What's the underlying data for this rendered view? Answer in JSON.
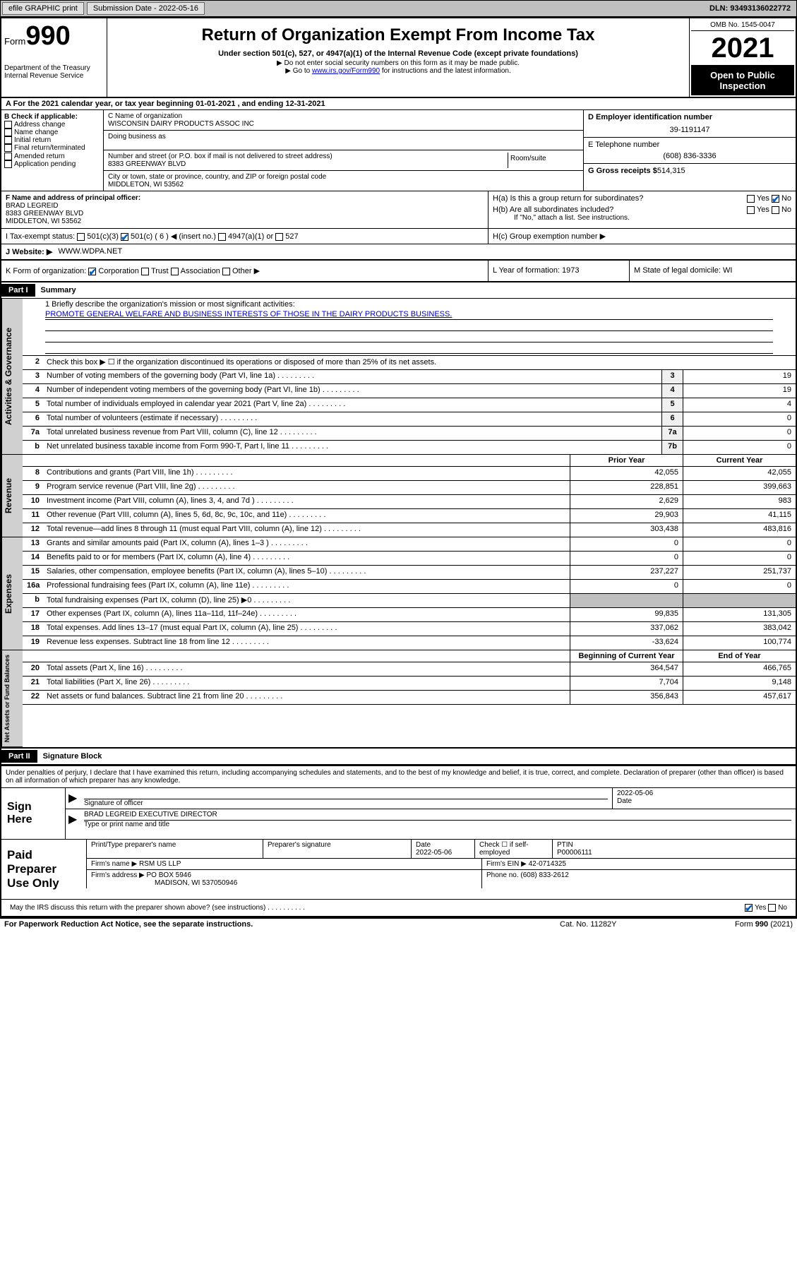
{
  "topbar": {
    "efile": "efile GRAPHIC print",
    "sub_date_label": "Submission Date - 2022-05-16",
    "dln": "DLN: 93493136022772"
  },
  "header": {
    "form_word": "Form",
    "form_num": "990",
    "dept": "Department of the Treasury\nInternal Revenue Service",
    "title": "Return of Organization Exempt From Income Tax",
    "sub1": "Under section 501(c), 527, or 4947(a)(1) of the Internal Revenue Code (except private foundations)",
    "sub2": "▶ Do not enter social security numbers on this form as it may be made public.",
    "sub3_pre": "▶ Go to ",
    "sub3_link": "www.irs.gov/Form990",
    "sub3_post": " for instructions and the latest information.",
    "omb": "OMB No. 1545-0047",
    "year": "2021",
    "open": "Open to Public Inspection"
  },
  "row_a": "A For the 2021 calendar year, or tax year beginning 01-01-2021    , and ending 12-31-2021",
  "col_b": {
    "hdr": "B Check if applicable:",
    "items": [
      "Address change",
      "Name change",
      "Initial return",
      "Final return/terminated",
      "Amended return",
      "Application pending"
    ]
  },
  "col_c": {
    "name_lbl": "C Name of organization",
    "name": "WISCONSIN DAIRY PRODUCTS ASSOC INC",
    "dba_lbl": "Doing business as",
    "addr_lbl": "Number and street (or P.O. box if mail is not delivered to street address)",
    "room_lbl": "Room/suite",
    "addr": "8383 GREENWAY BLVD",
    "city_lbl": "City or town, state or province, country, and ZIP or foreign postal code",
    "city": "MIDDLETON, WI  53562"
  },
  "col_d": {
    "ein_lbl": "D Employer identification number",
    "ein": "39-1191147",
    "tel_lbl": "E Telephone number",
    "tel": "(608) 836-3336",
    "gross_lbl": "G Gross receipts $",
    "gross": "514,315"
  },
  "row_f": {
    "lbl": "F Name and address of principal officer:",
    "name": "BRAD LEGREID",
    "addr1": "8383 GREENWAY BLVD",
    "addr2": "MIDDLETON, WI  53562"
  },
  "row_h": {
    "ha": "H(a)  Is this a group return for subordinates?",
    "hb": "H(b)  Are all subordinates included?",
    "hb_note": "If \"No,\" attach a list. See instructions.",
    "hc": "H(c)  Group exemption number ▶"
  },
  "row_i": {
    "lbl": "I    Tax-exempt status:",
    "opts": [
      "501(c)(3)",
      "501(c) ( 6 ) ◀ (insert no.)",
      "4947(a)(1) or",
      "527"
    ]
  },
  "row_j": {
    "lbl": "J    Website: ▶",
    "val": "WWW.WDPA.NET"
  },
  "row_k": {
    "lbl": "K Form of organization:",
    "opts": [
      "Corporation",
      "Trust",
      "Association",
      "Other ▶"
    ],
    "l": "L Year of formation: 1973",
    "m": "M State of legal domicile: WI"
  },
  "part1": {
    "hdr": "Part I",
    "title": "Summary",
    "mission_lbl": "1   Briefly describe the organization's mission or most significant activities:",
    "mission": "PROMOTE GENERAL WELFARE AND BUSINESS INTERESTS OF THOSE IN THE DAIRY PRODUCTS BUSINESS.",
    "line2": "Check this box ▶ ☐  if the organization discontinued its operations or disposed of more than 25% of its net assets.",
    "gov_lines": [
      {
        "n": "3",
        "t": "Number of voting members of the governing body (Part VI, line 1a)",
        "bn": "3",
        "v": "19"
      },
      {
        "n": "4",
        "t": "Number of independent voting members of the governing body (Part VI, line 1b)",
        "bn": "4",
        "v": "19"
      },
      {
        "n": "5",
        "t": "Total number of individuals employed in calendar year 2021 (Part V, line 2a)",
        "bn": "5",
        "v": "4"
      },
      {
        "n": "6",
        "t": "Total number of volunteers (estimate if necessary)",
        "bn": "6",
        "v": "0"
      },
      {
        "n": "7a",
        "t": "Total unrelated business revenue from Part VIII, column (C), line 12",
        "bn": "7a",
        "v": "0"
      },
      {
        "n": "b",
        "t": "Net unrelated business taxable income from Form 990-T, Part I, line 11",
        "bn": "7b",
        "v": "0"
      }
    ],
    "col_hdr": {
      "prior": "Prior Year",
      "curr": "Current Year"
    },
    "rev_lines": [
      {
        "n": "8",
        "t": "Contributions and grants (Part VIII, line 1h)",
        "p": "42,055",
        "c": "42,055"
      },
      {
        "n": "9",
        "t": "Program service revenue (Part VIII, line 2g)",
        "p": "228,851",
        "c": "399,663"
      },
      {
        "n": "10",
        "t": "Investment income (Part VIII, column (A), lines 3, 4, and 7d )",
        "p": "2,629",
        "c": "983"
      },
      {
        "n": "11",
        "t": "Other revenue (Part VIII, column (A), lines 5, 6d, 8c, 9c, 10c, and 11e)",
        "p": "29,903",
        "c": "41,115"
      },
      {
        "n": "12",
        "t": "Total revenue—add lines 8 through 11 (must equal Part VIII, column (A), line 12)",
        "p": "303,438",
        "c": "483,816"
      }
    ],
    "exp_lines": [
      {
        "n": "13",
        "t": "Grants and similar amounts paid (Part IX, column (A), lines 1–3 )",
        "p": "0",
        "c": "0"
      },
      {
        "n": "14",
        "t": "Benefits paid to or for members (Part IX, column (A), line 4)",
        "p": "0",
        "c": "0"
      },
      {
        "n": "15",
        "t": "Salaries, other compensation, employee benefits (Part IX, column (A), lines 5–10)",
        "p": "237,227",
        "c": "251,737"
      },
      {
        "n": "16a",
        "t": "Professional fundraising fees (Part IX, column (A), line 11e)",
        "p": "0",
        "c": "0"
      },
      {
        "n": "b",
        "t": "Total fundraising expenses (Part IX, column (D), line 25) ▶0",
        "p": "",
        "c": "",
        "grey": true
      },
      {
        "n": "17",
        "t": "Other expenses (Part IX, column (A), lines 11a–11d, 11f–24e)",
        "p": "99,835",
        "c": "131,305"
      },
      {
        "n": "18",
        "t": "Total expenses. Add lines 13–17 (must equal Part IX, column (A), line 25)",
        "p": "337,062",
        "c": "383,042"
      },
      {
        "n": "19",
        "t": "Revenue less expenses. Subtract line 18 from line 12",
        "p": "-33,624",
        "c": "100,774"
      }
    ],
    "na_hdr": {
      "beg": "Beginning of Current Year",
      "end": "End of Year"
    },
    "na_lines": [
      {
        "n": "20",
        "t": "Total assets (Part X, line 16)",
        "p": "364,547",
        "c": "466,765"
      },
      {
        "n": "21",
        "t": "Total liabilities (Part X, line 26)",
        "p": "7,704",
        "c": "9,148"
      },
      {
        "n": "22",
        "t": "Net assets or fund balances. Subtract line 21 from line 20",
        "p": "356,843",
        "c": "457,617"
      }
    ]
  },
  "part2": {
    "hdr": "Part II",
    "title": "Signature Block",
    "intro": "Under penalties of perjury, I declare that I have examined this return, including accompanying schedules and statements, and to the best of my knowledge and belief, it is true, correct, and complete. Declaration of preparer (other than officer) is based on all information of which preparer has any knowledge.",
    "sign_here": "Sign Here",
    "sig_officer": "Signature of officer",
    "sig_date": "2022-05-06",
    "date_lbl": "Date",
    "officer_name": "BRAD LEGREID  EXECUTIVE DIRECTOR",
    "name_title_lbl": "Type or print name and title",
    "paid_lbl": "Paid Preparer Use Only",
    "prep_hdrs": [
      "Print/Type preparer's name",
      "Preparer's signature",
      "Date",
      "Check ☐ if self-employed",
      "PTIN"
    ],
    "prep_date": "2022-05-06",
    "ptin": "P00006111",
    "firm_name_lbl": "Firm's name    ▶",
    "firm_name": "RSM US LLP",
    "firm_ein_lbl": "Firm's EIN ▶",
    "firm_ein": "42-0714325",
    "firm_addr_lbl": "Firm's address ▶",
    "firm_addr1": "PO BOX 5946",
    "firm_addr2": "MADISON, WI  537050946",
    "phone_lbl": "Phone no.",
    "phone": "(608) 833-2612",
    "discuss": "May the IRS discuss this return with the preparer shown above? (see instructions)"
  },
  "footer": {
    "l": "For Paperwork Reduction Act Notice, see the separate instructions.",
    "m": "Cat. No. 11282Y",
    "r": "Form 990 (2021)"
  }
}
